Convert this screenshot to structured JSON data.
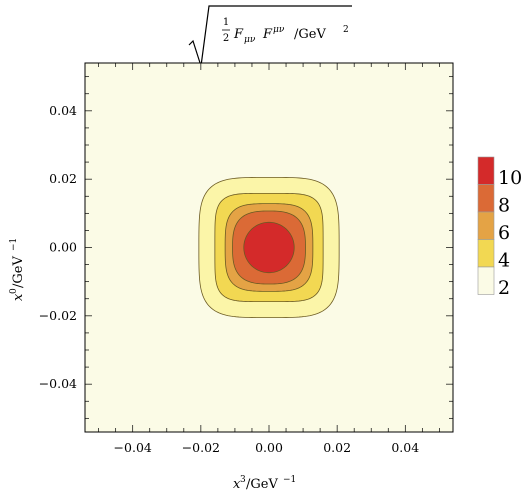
{
  "chart_data": {
    "type": "contour",
    "title": "√( ½ Fμν Fμν ) /GeV²",
    "title_parts": {
      "half_num": "1",
      "half_den": "2",
      "tensor_lower": "F",
      "lower_idx": "μν",
      "tensor_upper": "F",
      "upper_idx": "μν",
      "unit": "/GeV",
      "unit_exp": "2"
    },
    "xlabel": {
      "var": "x",
      "sup": "3",
      "unit": "/GeV",
      "unit_exp": "−1"
    },
    "ylabel": {
      "var": "x",
      "sup": "0",
      "unit": "/GeV",
      "unit_exp": "−1"
    },
    "xlim": [
      -0.054,
      0.054
    ],
    "ylim": [
      -0.054,
      0.054
    ],
    "xticks": [
      -0.04,
      -0.02,
      0.0,
      0.02,
      0.04
    ],
    "xtick_labels": [
      "−0.04",
      "−0.02",
      "0.00",
      "0.02",
      "0.04"
    ],
    "yticks": [
      -0.04,
      -0.02,
      0.0,
      0.02,
      0.04
    ],
    "ytick_labels": [
      "−0.04",
      "−0.02",
      "0.00",
      "0.02",
      "0.04"
    ],
    "background_level_color": "#fbfbe6",
    "contours": [
      {
        "level": 2,
        "halfwidth": 0.0185,
        "radius": 0.0034,
        "squareness": 3.0,
        "color": "#fbf5a8"
      },
      {
        "level": 4,
        "halfwidth": 0.0125,
        "radius": 0.0044,
        "squareness": 3.4,
        "color": "#f2d852"
      },
      {
        "level": 6,
        "halfwidth": 0.0087,
        "radius": 0.005,
        "squareness": 2.7,
        "color": "#e4a345"
      },
      {
        "level": 8,
        "halfwidth": 0.0062,
        "radius": 0.0052,
        "squareness": 2.3,
        "color": "#db6a36"
      },
      {
        "level": 10,
        "halfwidth": 0.0037,
        "radius": 0.0037,
        "squareness": 2.0,
        "color": "#d42a2a"
      }
    ],
    "colorbar": {
      "levels": [
        "10",
        "8",
        "6",
        "4",
        "2"
      ],
      "colors": [
        "#d42a2a",
        "#db6a36",
        "#e4a345",
        "#f2d852",
        "#fbfbe6"
      ]
    }
  }
}
